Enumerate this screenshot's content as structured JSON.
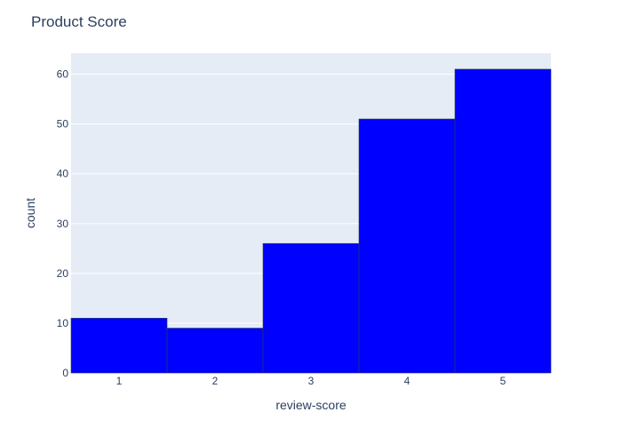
{
  "chart_data": {
    "type": "bar",
    "title": "Product Score",
    "xlabel": "review-score",
    "ylabel": "count",
    "categories": [
      "1",
      "2",
      "3",
      "4",
      "5"
    ],
    "values": [
      11,
      9,
      26,
      51,
      61
    ],
    "xlim": [
      0.5,
      5.5
    ],
    "ylim": [
      0,
      64.2
    ],
    "yticks": [
      0,
      10,
      20,
      30,
      40,
      50,
      60
    ],
    "grid": true,
    "bar_color": "#0000ff",
    "bar_outline_color": "#2a3f5f",
    "plot_background": "#e5ecf6",
    "text_color": "#2a3f5f"
  }
}
